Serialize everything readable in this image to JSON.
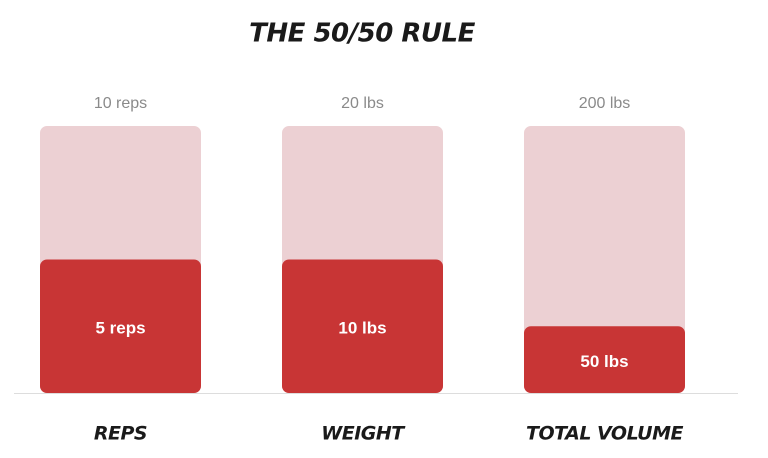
{
  "chart_data": {
    "type": "bar",
    "title": "THE 50/50 RULE",
    "categories": [
      "REPS",
      "WEIGHT",
      "TOTAL VOLUME"
    ],
    "series": [
      {
        "color": "#ecd0d3",
        "values": [
          10,
          20,
          200
        ],
        "value_labels": [
          "10 reps",
          "20 lbs",
          "200 lbs"
        ]
      },
      {
        "color": "#c83535",
        "values": [
          5,
          10,
          50
        ],
        "value_labels": [
          "5 reps",
          "10 lbs",
          "50 lbs"
        ]
      }
    ]
  }
}
